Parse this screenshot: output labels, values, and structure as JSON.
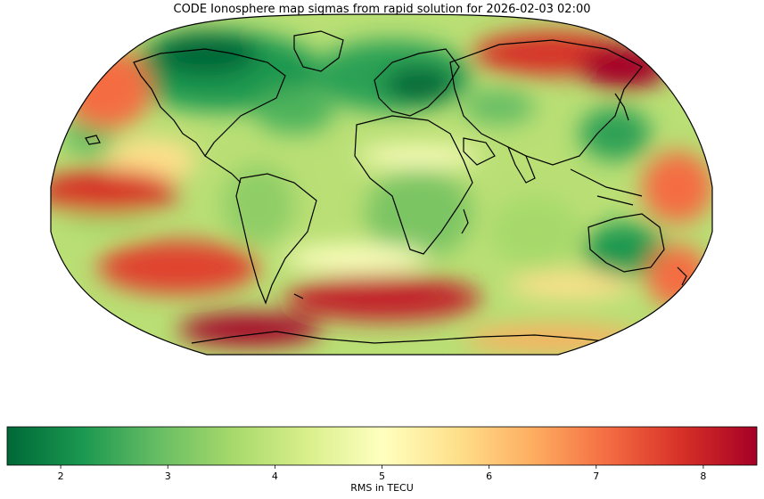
{
  "title": "CODE Ionosphere map sigmas from rapid solution for 2026-02-03 02:00",
  "colorbar": {
    "label": "RMS in TECU",
    "min": 1.5,
    "max": 8.5,
    "ticks": [
      "2",
      "3",
      "4",
      "5",
      "6",
      "7",
      "8"
    ],
    "colormap": "RdYlGn_r",
    "colors": [
      "#006837",
      "#1a9850",
      "#66bd63",
      "#a6d96a",
      "#d9ef8b",
      "#ffffbf",
      "#fee08b",
      "#fdae61",
      "#f46d43",
      "#d73027",
      "#a50026"
    ]
  },
  "map": {
    "projection": "Robinson",
    "coastlines": true
  }
}
